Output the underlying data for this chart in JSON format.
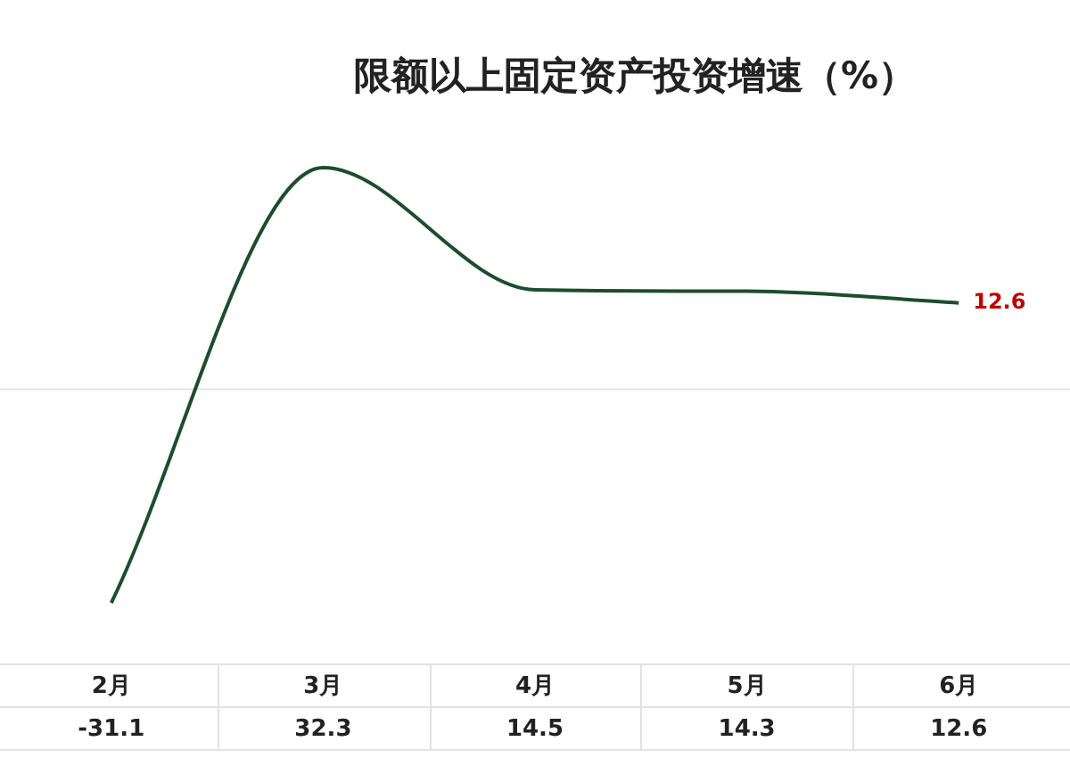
{
  "chart_data": {
    "type": "line",
    "title": "限额以上固定资产投资增速（%）",
    "categories": [
      "2月",
      "3月",
      "4月",
      "5月",
      "6月"
    ],
    "series": [
      {
        "color": "#1d4d2c",
        "values": [
          -31.1,
          32.3,
          14.5,
          14.3,
          12.6
        ]
      }
    ],
    "data_labels": true,
    "marker": "none",
    "legend": false,
    "ref_lines": [
      {
        "axis": "y",
        "value": 0,
        "color": "#e4e4e4"
      }
    ],
    "annotations": [
      {
        "text": "12.6",
        "x": "6月",
        "y": 12.6
      }
    ]
  }
}
